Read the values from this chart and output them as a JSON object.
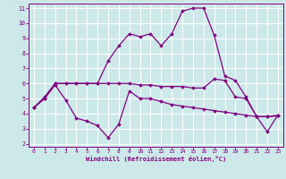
{
  "xlabel": "Windchill (Refroidissement éolien,°C)",
  "background_color": "#cce8e8",
  "grid_color": "#ffffff",
  "line_color": "#800080",
  "xlim": [
    -0.5,
    23.5
  ],
  "ylim": [
    1.8,
    11.3
  ],
  "yticks": [
    2,
    3,
    4,
    5,
    6,
    7,
    8,
    9,
    10,
    11
  ],
  "xticks": [
    0,
    1,
    2,
    3,
    4,
    5,
    6,
    7,
    8,
    9,
    10,
    11,
    12,
    13,
    14,
    15,
    16,
    17,
    18,
    19,
    20,
    21,
    22,
    23
  ],
  "line1_x": [
    0,
    1,
    2,
    3,
    4,
    5,
    6,
    7,
    8,
    9,
    10,
    11,
    12,
    13,
    14,
    15,
    16,
    17,
    18,
    19,
    20,
    21,
    22,
    23
  ],
  "line1_y": [
    4.4,
    5.0,
    5.9,
    4.9,
    3.7,
    3.5,
    3.2,
    2.4,
    3.3,
    5.5,
    5.0,
    5.0,
    4.8,
    4.6,
    4.5,
    4.4,
    4.3,
    4.2,
    4.1,
    4.0,
    3.9,
    3.8,
    3.8,
    3.85
  ],
  "line2_x": [
    0,
    1,
    2,
    3,
    4,
    5,
    6,
    7,
    8,
    9,
    10,
    11,
    12,
    13,
    14,
    15,
    16,
    17,
    18,
    19,
    20,
    21,
    22,
    23
  ],
  "line2_y": [
    4.4,
    5.0,
    6.0,
    6.0,
    6.0,
    6.0,
    6.0,
    7.5,
    8.5,
    9.3,
    9.1,
    9.3,
    8.5,
    9.3,
    10.8,
    11.0,
    11.0,
    9.2,
    6.5,
    6.2,
    5.1,
    3.8,
    2.8,
    3.9
  ],
  "line3_x": [
    0,
    1,
    2,
    3,
    4,
    5,
    6,
    7,
    8,
    9,
    10,
    11,
    12,
    13,
    14,
    15,
    16,
    17,
    18,
    19,
    20,
    21,
    22,
    23
  ],
  "line3_y": [
    4.4,
    5.1,
    6.0,
    6.0,
    6.0,
    6.0,
    6.0,
    6.0,
    6.0,
    6.0,
    5.9,
    5.9,
    5.8,
    5.8,
    5.8,
    5.7,
    5.7,
    6.3,
    6.2,
    5.1,
    5.0,
    3.8,
    3.8,
    3.9
  ],
  "marker": "D",
  "markersize": 1.8,
  "linewidth": 0.9
}
